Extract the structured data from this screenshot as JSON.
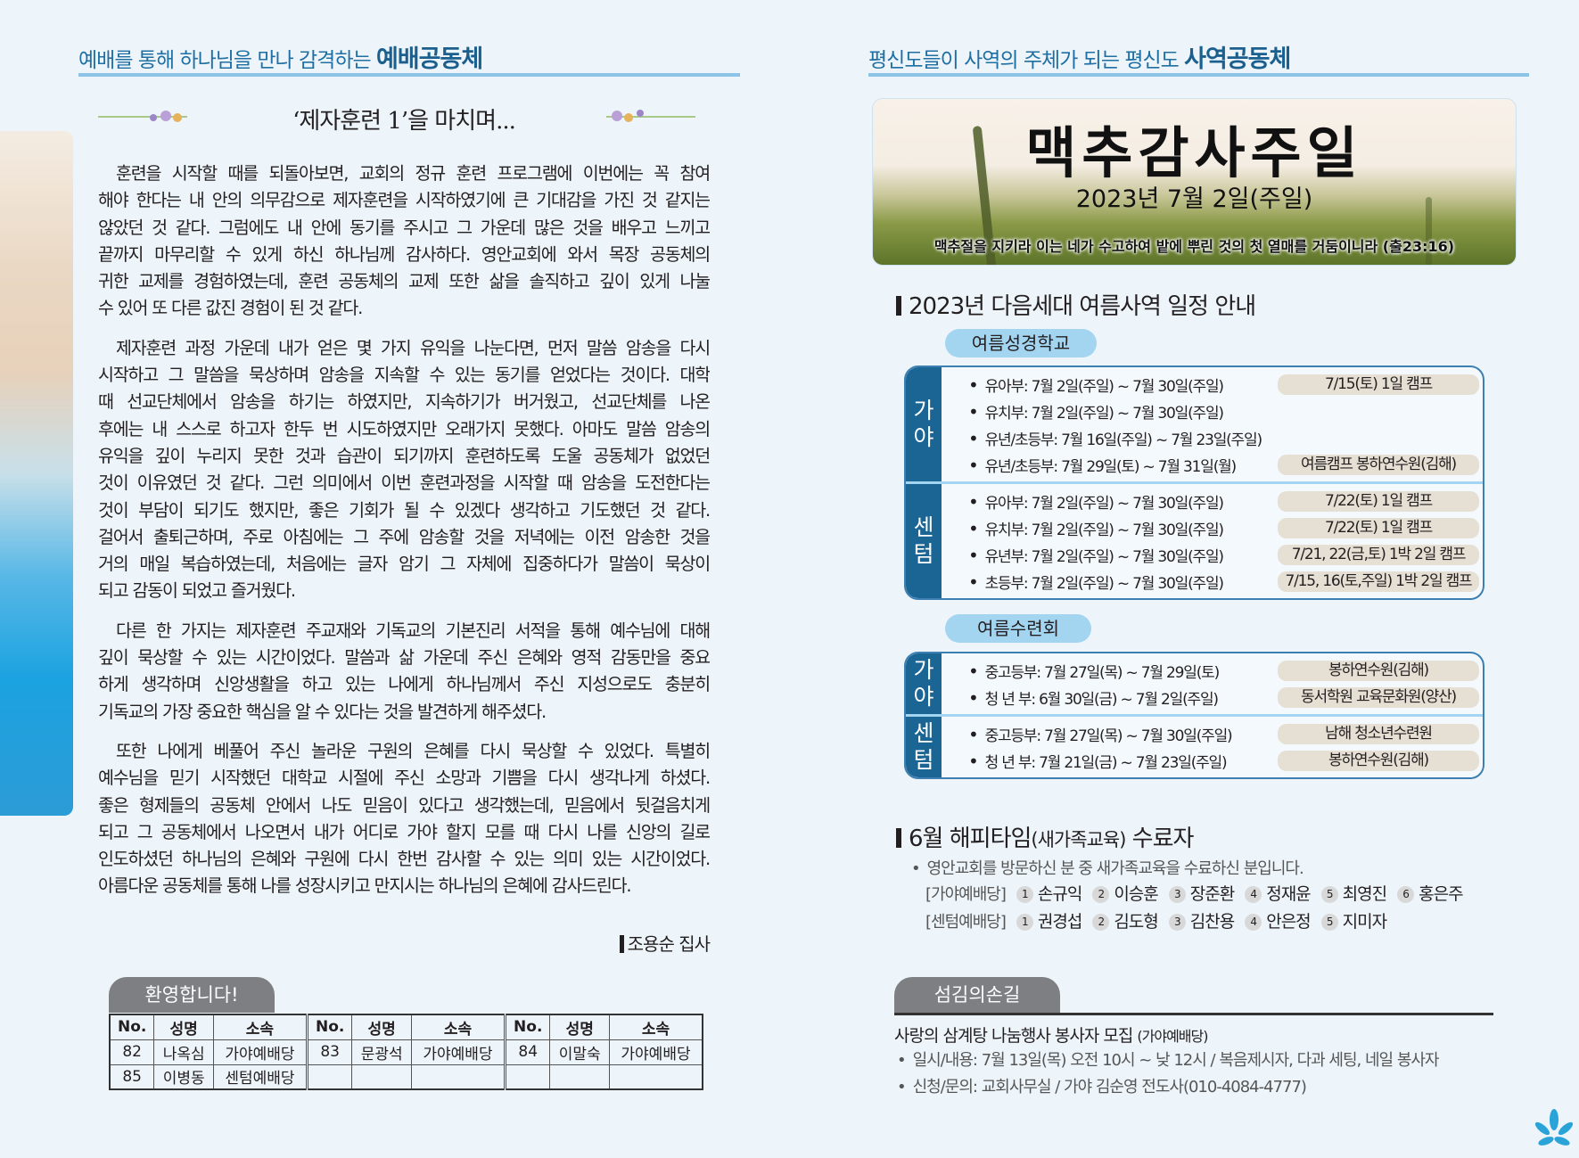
{
  "left": {
    "header_prefix": "예배를 통해 하나님을 만나 감격하는",
    "header_main": "예배공동체",
    "title": "‘제자훈련 1’을 마치며...",
    "paragraphs": [
      [
        "훈련을 시작할 때를 되돌아보면, 교회의 정규 훈련 프로그램에 이번에는 꼭 참여",
        "해야 한다는 내 안의 의무감으로 제자훈련을 시작하였기에 큰 기대감을 가진 것 같지는",
        "않았던 것 같다. 그럼에도 내 안에 동기를 주시고 그 가운데 많은 것을 배우고 느끼고",
        "끝까지 마무리할 수 있게 하신 하나님께 감사하다. 영안교회에 와서 목장 공동체의",
        "귀한 교제를 경험하였는데, 훈련 공동체의 교제 또한 삶을 솔직하고 깊이 있게 나눌",
        "수 있어 또 다른 값진 경험이 된 것 같다."
      ],
      [
        "제자훈련 과정 가운데 내가 얻은 몇 가지 유익을 나눈다면, 먼저 말씀 암송을 다시",
        "시작하고 그 말씀을 묵상하며 암송을 지속할 수 있는 동기를 얻었다는 것이다. 대학",
        "때 선교단체에서 암송을 하기는 하였지만, 지속하기가 버거웠고, 선교단체를 나온",
        "후에는 내 스스로 하고자 한두 번 시도하였지만 오래가지 못했다. 아마도 말씀 암송의",
        "유익을 깊이 누리지 못한 것과 습관이 되기까지 훈련하도록 도울 공동체가 없었던",
        "것이 이유였던 것 같다. 그런 의미에서 이번 훈련과정을 시작할 때 암송을 도전한다는",
        "것이 부담이 되기도 했지만, 좋은 기회가 될 수 있겠다 생각하고 기도했던 것 같다.",
        "걸어서 출퇴근하며, 주로 아침에는 그 주에 암송할 것을 저녁에는 이전 암송한 것을",
        "거의 매일 복습하였는데, 처음에는 글자 암기 그 자체에 집중하다가 말씀이 묵상이",
        "되고 감동이 되었고 즐거웠다."
      ],
      [
        "다른 한 가지는 제자훈련 주교재와 기독교의 기본진리 서적을 통해 예수님에 대해",
        "깊이 묵상할 수 있는 시간이었다. 말씀과 삶 가운데 주신 은혜와 영적 감동만을 중요",
        "하게 생각하며 신앙생활을 하고 있는 나에게 하나님께서 주신 지성으로도 충분히",
        "기독교의 가장 중요한 핵심을 알 수 있다는 것을 발견하게 해주셨다."
      ],
      [
        "또한 나에게 베풀어 주신 놀라운 구원의 은혜를 다시 묵상할 수 있었다. 특별히",
        "예수님을 믿기 시작했던 대학교 시절에 주신 소망과 기쁨을 다시 생각나게 하셨다.",
        "좋은 형제들의 공동체 안에서 나도 믿음이 있다고 생각했는데, 믿음에서 뒷걸음치게",
        "되고 그 공동체에서 나오면서 내가 어디로 가야 할지 모를 때 다시 나를 신앙의 길로",
        "인도하셨던 하나님의 은혜와 구원에 다시 한번 감사할 수 있는 의미 있는 시간이었다.",
        "아름다운 공동체를 통해 나를 성장시키고 만지시는 하나님의 은혜에 감사드린다."
      ]
    ],
    "signature": "조용순 집사",
    "welcome": {
      "tab": "환영합니다!",
      "headers": [
        "No.",
        "성명",
        "소속"
      ],
      "rows": [
        [
          [
            "82",
            "나옥심",
            "가야예배당"
          ],
          [
            "83",
            "문광석",
            "가야예배당"
          ],
          [
            "84",
            "이말숙",
            "가야예배당"
          ]
        ],
        [
          [
            "85",
            "이병동",
            "센텀예배당"
          ],
          [
            "",
            "",
            ""
          ],
          [
            "",
            "",
            ""
          ]
        ]
      ]
    }
  },
  "right": {
    "header_prefix": "평신도들이 사역의 주체가 되는 평신도",
    "header_main": "사역공동체",
    "banner": {
      "title": "맥추감사주일",
      "date": "2023년 7월 2일(주일)",
      "verse": "맥추절을 지키라 이는 네가 수고하여 밭에 뿌린 것의 첫 열매를 거둠이니라 (출23:16)"
    },
    "summer": {
      "heading": "2023년 다음세대 여름사역 일정 안내",
      "bible_school": {
        "label": "여름성경학교",
        "groups": [
          {
            "campus": "가야",
            "rows": [
              {
                "text": "유아부: 7월 2일(주일) ~ 7월 30일(주일)",
                "tag": "7/15(토)  1일 캠프"
              },
              {
                "text": "유치부: 7월 2일(주일) ~ 7월 30일(주일)",
                "tag": ""
              },
              {
                "text": "유년/초등부: 7월 16일(주일) ~ 7월 23일(주일)",
                "tag": ""
              },
              {
                "text": "유년/초등부: 7월 29일(토) ~ 7월 31일(월)",
                "tag": "여름캠프  봉하연수원(김해)"
              }
            ]
          },
          {
            "campus": "센텀",
            "rows": [
              {
                "text": "유아부: 7월 2일(주일) ~ 7월 30일(주일)",
                "tag": "7/22(토)  1일 캠프"
              },
              {
                "text": "유치부: 7월 2일(주일) ~ 7월 30일(주일)",
                "tag": "7/22(토)  1일 캠프"
              },
              {
                "text": "유년부: 7월 2일(주일) ~ 7월 30일(주일)",
                "tag": "7/21, 22(금,토) 1박 2일 캠프"
              },
              {
                "text": "초등부: 7월 2일(주일) ~ 7월 30일(주일)",
                "tag": "7/15, 16(토,주일) 1박 2일 캠프"
              }
            ]
          }
        ]
      },
      "retreat": {
        "label": "여름수련회",
        "groups": [
          {
            "campus": "가야",
            "rows": [
              {
                "text": "중고등부: 7월 27일(목) ~ 7월 29일(토)",
                "tag": "봉하연수원(김해)"
              },
              {
                "text": "청 년 부: 6월 30일(금) ~ 7월 2일(주일)",
                "tag": "동서학원 교육문화원(양산)"
              }
            ]
          },
          {
            "campus": "센텀",
            "rows": [
              {
                "text": "중고등부: 7월 27일(목) ~ 7월 30일(주일)",
                "tag": "남해 청소년수련원"
              },
              {
                "text": "청 년 부: 7월 21일(금) ~ 7월 23일(주일)",
                "tag": "봉하연수원(김해)"
              }
            ]
          }
        ]
      }
    },
    "happytime": {
      "heading_main": "6월 해피타임",
      "heading_paren": "(새가족교육)",
      "heading_tail": " 수료자",
      "note": "영안교회를 방문하신 분 중 새가족교육을 수료하신 분입니다.",
      "lists": [
        {
          "campus": "[가야예배당]",
          "names": [
            "손규익",
            "이승훈",
            "장준환",
            "정재윤",
            "최영진",
            "홍은주"
          ]
        },
        {
          "campus": "[센텀예배당]",
          "names": [
            "권경섭",
            "김도형",
            "김찬용",
            "안은정",
            "지미자"
          ]
        }
      ]
    },
    "serving": {
      "tab": "섬김의손길",
      "title": "사랑의 삼계탕 나눔행사 봉사자 모집",
      "title_small": "(가야예배당)",
      "items": [
        "일시/내용: 7월 13일(목) 오전 10시 ~ 낮 12시 / 복음제시자, 다과 세팅, 네일 봉사자",
        "신청/문의: 교회사무실 / 가야 김순영 전도사(010-4084-4777)"
      ]
    }
  },
  "colors": {
    "accent": "#1b6594",
    "pill": "#a3d4f0",
    "tag": "#e6dfd3",
    "background": "#edf5fb",
    "tab": "#7d7f82"
  },
  "icons": [
    "flower-decoration-icon",
    "church-logo-icon"
  ]
}
